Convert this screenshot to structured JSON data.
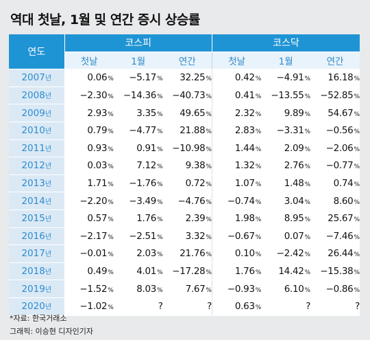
{
  "title": "역대 첫날, 1월 및 연간 증시 상승률",
  "table": {
    "year_header": "연도",
    "groups": [
      "코스피",
      "코스닥"
    ],
    "sub_headers": [
      "첫날",
      "1월",
      "연간",
      "첫날",
      "1월",
      "연간"
    ],
    "year_suffix": "년",
    "rows": [
      {
        "year": "2007",
        "values": [
          "0.06",
          "−5.17",
          "32.25",
          "0.42",
          "−4.91",
          "16.18"
        ]
      },
      {
        "year": "2008",
        "values": [
          "−2.30",
          "−14.36",
          "−40.73",
          "0.41",
          "−13.55",
          "−52.85"
        ]
      },
      {
        "year": "2009",
        "values": [
          "2.93",
          "3.35",
          "49.65",
          "2.32",
          "9.89",
          "54.67"
        ]
      },
      {
        "year": "2010",
        "values": [
          "0.79",
          "−4.77",
          "21.88",
          "2.83",
          "−3.31",
          "−0.56"
        ]
      },
      {
        "year": "2011",
        "values": [
          "0.93",
          "0.91",
          "−10.98",
          "1.44",
          "2.09",
          "−2.06"
        ]
      },
      {
        "year": "2012",
        "values": [
          "0.03",
          "7.12",
          "9.38",
          "1.32",
          "2.76",
          "−0.77"
        ]
      },
      {
        "year": "2013",
        "values": [
          "1.71",
          "−1.76",
          "0.72",
          "1.07",
          "1.48",
          "0.74"
        ]
      },
      {
        "year": "2014",
        "values": [
          "−2.20",
          "−3.49",
          "−4.76",
          "−0.74",
          "3.04",
          "8.60"
        ]
      },
      {
        "year": "2015",
        "values": [
          "0.57",
          "1.76",
          "2.39",
          "1.98",
          "8.95",
          "25.67"
        ]
      },
      {
        "year": "2016",
        "values": [
          "−2.17",
          "−2.51",
          "3.32",
          "−0.67",
          "0.07",
          "−7.46"
        ]
      },
      {
        "year": "2017",
        "values": [
          "−0.01",
          "2.03",
          "21.76",
          "0.10",
          "−2.42",
          "26.44"
        ]
      },
      {
        "year": "2018",
        "values": [
          "0.49",
          "4.01",
          "−17.28",
          "1.76",
          "14.42",
          "−15.38"
        ]
      },
      {
        "year": "2019",
        "values": [
          "−1.52",
          "8.03",
          "7.67",
          "−0.93",
          "6.10",
          "−0.86"
        ]
      },
      {
        "year": "2020",
        "values": [
          "−1.02",
          "?",
          "?",
          "0.63",
          "?",
          "?"
        ]
      }
    ]
  },
  "source": "*자료: 한국거래소",
  "credit": "그래픽: 이승현 디자인기자",
  "colors": {
    "header_blue": "#1f94d4",
    "subheader_text": "#2c8acb",
    "year_cell_bg": "#dbe9f5",
    "page_bg": "#e9eaec"
  }
}
